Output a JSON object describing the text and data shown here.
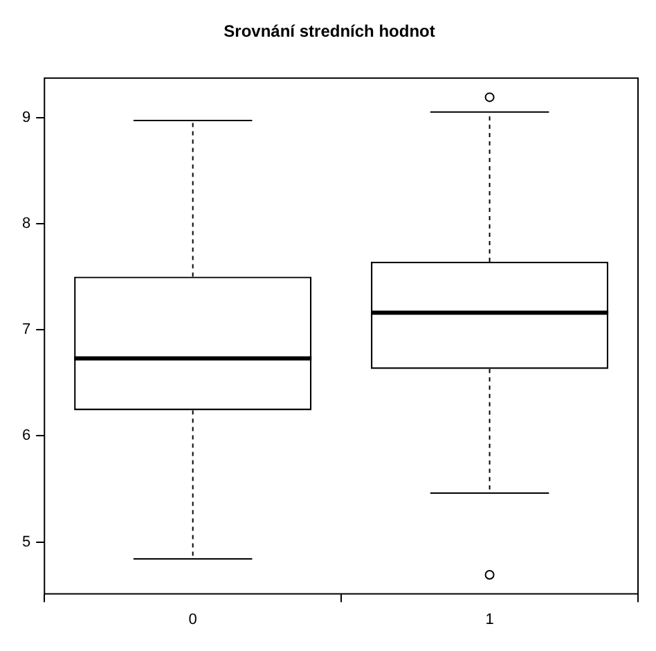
{
  "chart_data": {
    "type": "box",
    "title": "Srovnání stredních hodnot",
    "categories": [
      "0",
      "1"
    ],
    "boxes": [
      {
        "low": 4.84,
        "q1": 6.24,
        "median": 6.73,
        "q3": 7.5,
        "high": 8.97
      },
      {
        "low": 5.46,
        "q1": 6.63,
        "median": 7.16,
        "q3": 7.64,
        "high": 9.05,
        "outliers": [
          9.19,
          4.69
        ]
      }
    ],
    "ylim": [
      4.51,
      9.37
    ],
    "yticks": [
      5,
      6,
      7,
      8,
      9
    ],
    "grid": false,
    "legend": false
  }
}
